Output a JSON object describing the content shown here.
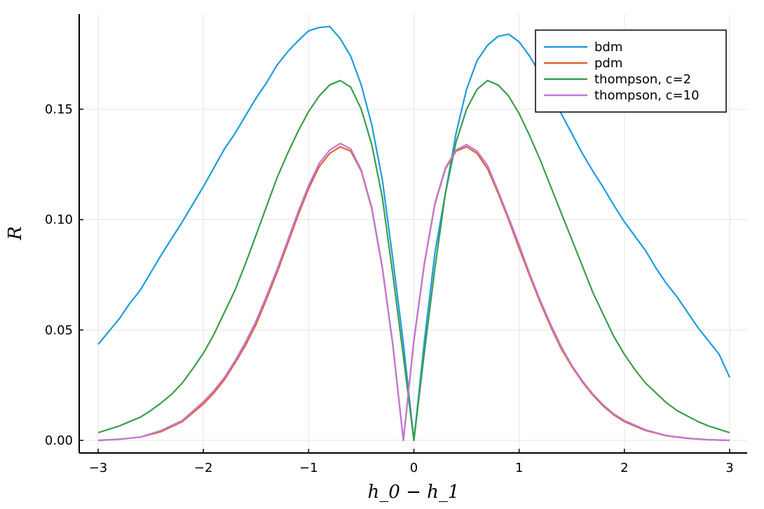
{
  "chart_data": {
    "type": "line",
    "title": "",
    "xlabel": "h_0 − h_1",
    "ylabel": "R",
    "xlim": [
      -3,
      3
    ],
    "ylim": [
      0,
      0.19
    ],
    "xticks": [
      -3,
      -2,
      -1,
      0,
      1,
      2,
      3
    ],
    "xtick_labels": [
      "−3",
      "−2",
      "−1",
      "0",
      "1",
      "2",
      "3"
    ],
    "yticks": [
      0.0,
      0.05,
      0.1,
      0.15
    ],
    "ytick_labels": [
      "0.00",
      "0.05",
      "0.10",
      "0.15"
    ],
    "grid": true,
    "legend_position": "top-right",
    "series": [
      {
        "name": "bdm",
        "color": "#1f9be0",
        "x": [
          -3.0,
          -2.8,
          -2.7,
          -2.6,
          -2.5,
          -2.4,
          -2.2,
          -2.0,
          -1.8,
          -1.7,
          -1.6,
          -1.5,
          -1.4,
          -1.3,
          -1.2,
          -1.1,
          -1.0,
          -0.9,
          -0.8,
          -0.7,
          -0.6,
          -0.5,
          -0.4,
          -0.3,
          -0.2,
          -0.1,
          0.0,
          0.1,
          0.2,
          0.3,
          0.4,
          0.5,
          0.6,
          0.7,
          0.8,
          0.9,
          1.0,
          1.1,
          1.2,
          1.3,
          1.4,
          1.5,
          1.6,
          1.7,
          1.8,
          1.9,
          2.0,
          2.1,
          2.2,
          2.3,
          2.4,
          2.5,
          2.6,
          2.7,
          2.8,
          2.9,
          3.0
        ],
        "values": [
          0.0435,
          0.055,
          0.062,
          0.068,
          0.076,
          0.084,
          0.099,
          0.115,
          0.132,
          0.139,
          0.147,
          0.155,
          0.162,
          0.17,
          0.176,
          0.181,
          0.1855,
          0.187,
          0.1875,
          0.182,
          0.174,
          0.161,
          0.143,
          0.118,
          0.082,
          0.044,
          0.0,
          0.045,
          0.085,
          0.112,
          0.139,
          0.159,
          0.172,
          0.179,
          0.183,
          0.184,
          0.1805,
          0.174,
          0.166,
          0.157,
          0.148,
          0.139,
          0.13,
          0.122,
          0.1145,
          0.1065,
          0.099,
          0.0925,
          0.086,
          0.078,
          0.071,
          0.065,
          0.058,
          0.051,
          0.045,
          0.039,
          0.0285
        ]
      },
      {
        "name": "pdm",
        "color": "#e0613a",
        "x": [
          -3.0,
          -2.8,
          -2.6,
          -2.4,
          -2.2,
          -2.0,
          -1.9,
          -1.8,
          -1.7,
          -1.6,
          -1.5,
          -1.4,
          -1.3,
          -1.2,
          -1.1,
          -1.0,
          -0.9,
          -0.8,
          -0.7,
          -0.6,
          -0.5,
          -0.4,
          -0.3,
          -0.2,
          -0.1,
          0.0,
          0.1,
          0.2,
          0.3,
          0.4,
          0.5,
          0.6,
          0.7,
          0.8,
          0.9,
          1.0,
          1.1,
          1.2,
          1.3,
          1.4,
          1.5,
          1.6,
          1.7,
          1.8,
          1.9,
          2.0,
          2.2,
          2.4,
          2.6,
          2.8,
          3.0
        ],
        "values": [
          0.0,
          0.0005,
          0.0015,
          0.004,
          0.0085,
          0.0165,
          0.0215,
          0.0275,
          0.035,
          0.043,
          0.0525,
          0.064,
          0.076,
          0.089,
          0.102,
          0.114,
          0.124,
          0.13,
          0.133,
          0.131,
          0.122,
          0.105,
          0.078,
          0.043,
          0.0,
          0.045,
          0.08,
          0.107,
          0.123,
          0.131,
          0.133,
          0.13,
          0.123,
          0.112,
          0.1,
          0.087,
          0.0745,
          0.0625,
          0.0515,
          0.0415,
          0.0335,
          0.0265,
          0.0205,
          0.0155,
          0.0115,
          0.0085,
          0.0045,
          0.0021,
          0.0009,
          0.0003,
          0.0
        ]
      },
      {
        "name": "thompson, c=2",
        "color": "#3a9e4a",
        "x": [
          -3.0,
          -2.9,
          -2.8,
          -2.7,
          -2.6,
          -2.5,
          -2.4,
          -2.3,
          -2.2,
          -2.1,
          -2.0,
          -1.9,
          -1.8,
          -1.7,
          -1.6,
          -1.5,
          -1.4,
          -1.3,
          -1.2,
          -1.1,
          -1.0,
          -0.9,
          -0.8,
          -0.7,
          -0.6,
          -0.5,
          -0.4,
          -0.3,
          -0.2,
          -0.1,
          0.0,
          0.1,
          0.2,
          0.3,
          0.4,
          0.5,
          0.6,
          0.7,
          0.8,
          0.9,
          1.0,
          1.1,
          1.2,
          1.3,
          1.4,
          1.5,
          1.6,
          1.7,
          1.8,
          1.9,
          2.0,
          2.1,
          2.2,
          2.3,
          2.4,
          2.5,
          2.6,
          2.7,
          2.8,
          2.9,
          3.0
        ],
        "values": [
          0.0035,
          0.005,
          0.0065,
          0.0085,
          0.0105,
          0.0135,
          0.017,
          0.021,
          0.026,
          0.0325,
          0.0395,
          0.048,
          0.058,
          0.068,
          0.08,
          0.093,
          0.106,
          0.119,
          0.13,
          0.14,
          0.149,
          0.156,
          0.161,
          0.163,
          0.16,
          0.15,
          0.134,
          0.11,
          0.075,
          0.038,
          0.0,
          0.04,
          0.078,
          0.112,
          0.135,
          0.15,
          0.159,
          0.163,
          0.161,
          0.156,
          0.148,
          0.138,
          0.127,
          0.115,
          0.103,
          0.091,
          0.079,
          0.067,
          0.057,
          0.047,
          0.039,
          0.032,
          0.026,
          0.0215,
          0.017,
          0.0135,
          0.011,
          0.0085,
          0.0065,
          0.005,
          0.0035
        ]
      },
      {
        "name": "thompson, c=10",
        "color": "#c078d8",
        "x": [
          -3.0,
          -2.8,
          -2.6,
          -2.4,
          -2.2,
          -2.0,
          -1.9,
          -1.8,
          -1.7,
          -1.6,
          -1.5,
          -1.4,
          -1.3,
          -1.2,
          -1.1,
          -1.0,
          -0.9,
          -0.8,
          -0.7,
          -0.6,
          -0.5,
          -0.4,
          -0.3,
          -0.2,
          -0.1,
          0.0,
          0.1,
          0.2,
          0.3,
          0.4,
          0.5,
          0.6,
          0.7,
          0.8,
          0.9,
          1.0,
          1.1,
          1.2,
          1.3,
          1.4,
          1.5,
          1.6,
          1.7,
          1.8,
          1.9,
          2.0,
          2.2,
          2.4,
          2.6,
          2.8,
          3.0
        ],
        "values": [
          0.0,
          0.0005,
          0.0015,
          0.0045,
          0.009,
          0.0175,
          0.0225,
          0.0285,
          0.036,
          0.0445,
          0.054,
          0.0655,
          0.0775,
          0.0905,
          0.1035,
          0.1155,
          0.1255,
          0.1315,
          0.1345,
          0.132,
          0.1225,
          0.1055,
          0.0785,
          0.0435,
          0.0,
          0.0455,
          0.0805,
          0.1075,
          0.1235,
          0.1315,
          0.134,
          0.131,
          0.1245,
          0.113,
          0.101,
          0.0885,
          0.0755,
          0.0635,
          0.0525,
          0.0425,
          0.034,
          0.027,
          0.021,
          0.016,
          0.012,
          0.009,
          0.0048,
          0.0022,
          0.001,
          0.0003,
          0.0
        ]
      }
    ]
  }
}
